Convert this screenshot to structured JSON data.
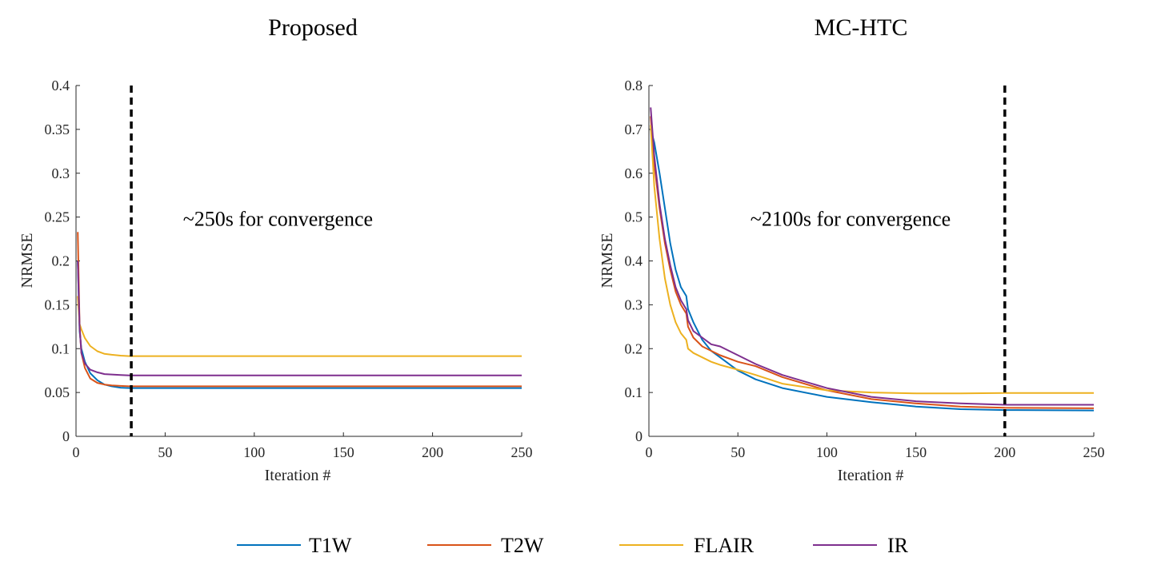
{
  "colors": {
    "T1W": "#0072BD",
    "T2W": "#D95319",
    "FLAIR": "#EDB120",
    "IR": "#7E2F8E",
    "axis": "#262626",
    "marker": "#000000"
  },
  "legend": [
    "T1W",
    "T2W",
    "FLAIR",
    "IR"
  ],
  "chart_data": [
    {
      "type": "line",
      "title": "Proposed",
      "xlabel": "Iteration #",
      "ylabel": "NRMSE",
      "xlim": [
        0,
        250
      ],
      "ylim": [
        0,
        0.4
      ],
      "xticks": [
        0,
        50,
        100,
        150,
        200,
        250
      ],
      "yticks": [
        0,
        0.05,
        0.1,
        0.15,
        0.2,
        0.25,
        0.3,
        0.35,
        0.4
      ],
      "xtick_labels": [
        "0",
        "50",
        "100",
        "150",
        "200",
        "250"
      ],
      "ytick_labels": [
        "0",
        "0.05",
        "0.1",
        "0.15",
        "0.2",
        "0.25",
        "0.3",
        "0.35",
        "0.4"
      ],
      "vline_x": 31,
      "annotation": "~250s for convergence",
      "annotation_at": [
        60,
        0.24
      ],
      "series": [
        {
          "name": "T1W",
          "x": [
            1,
            2,
            3,
            5,
            8,
            12,
            16,
            20,
            25,
            30,
            40,
            60,
            100,
            250
          ],
          "values": [
            0.2,
            0.12,
            0.1,
            0.085,
            0.072,
            0.064,
            0.059,
            0.057,
            0.0555,
            0.055,
            0.055,
            0.055,
            0.055,
            0.055
          ]
        },
        {
          "name": "T2W",
          "x": [
            1,
            2,
            3,
            5,
            8,
            12,
            16,
            20,
            25,
            30,
            40,
            60,
            100,
            250
          ],
          "values": [
            0.233,
            0.125,
            0.095,
            0.078,
            0.066,
            0.061,
            0.059,
            0.058,
            0.0575,
            0.057,
            0.057,
            0.057,
            0.057,
            0.057
          ]
        },
        {
          "name": "FLAIR",
          "x": [
            1,
            2,
            3,
            5,
            8,
            12,
            16,
            20,
            25,
            30,
            40,
            60,
            100,
            250
          ],
          "values": [
            0.16,
            0.128,
            0.122,
            0.112,
            0.103,
            0.097,
            0.094,
            0.093,
            0.092,
            0.0915,
            0.0915,
            0.0915,
            0.0915,
            0.0915
          ]
        },
        {
          "name": "IR",
          "x": [
            1,
            2,
            3,
            5,
            8,
            12,
            16,
            20,
            25,
            30,
            40,
            60,
            100,
            250
          ],
          "values": [
            0.2,
            0.125,
            0.095,
            0.083,
            0.076,
            0.073,
            0.071,
            0.0705,
            0.07,
            0.0695,
            0.0695,
            0.0695,
            0.0695,
            0.0695
          ]
        }
      ]
    },
    {
      "type": "line",
      "title": "MC-HTC",
      "xlabel": "Iteration #",
      "ylabel": "NRMSE",
      "xlim": [
        0,
        250
      ],
      "ylim": [
        0,
        0.8
      ],
      "xticks": [
        0,
        50,
        100,
        150,
        200,
        250
      ],
      "yticks": [
        0,
        0.1,
        0.2,
        0.3,
        0.4,
        0.5,
        0.6,
        0.7,
        0.8
      ],
      "xtick_labels": [
        "0",
        "50",
        "100",
        "150",
        "200",
        "250"
      ],
      "ytick_labels": [
        "0",
        "0.1",
        "0.2",
        "0.3",
        "0.4",
        "0.5",
        "0.6",
        "0.7",
        "0.8"
      ],
      "vline_x": 200,
      "annotation": "~2100s for convergence",
      "annotation_at": [
        57,
        0.48
      ],
      "series": [
        {
          "name": "T1W",
          "x": [
            1,
            3,
            6,
            9,
            12,
            15,
            18,
            21,
            22,
            25,
            30,
            35,
            40,
            50,
            60,
            75,
            100,
            125,
            150,
            175,
            200,
            250
          ],
          "values": [
            0.7,
            0.67,
            0.6,
            0.52,
            0.44,
            0.38,
            0.34,
            0.32,
            0.29,
            0.26,
            0.22,
            0.195,
            0.18,
            0.15,
            0.13,
            0.11,
            0.09,
            0.078,
            0.068,
            0.062,
            0.06,
            0.059
          ]
        },
        {
          "name": "T2W",
          "x": [
            1,
            3,
            6,
            9,
            12,
            15,
            18,
            21,
            22,
            25,
            30,
            35,
            40,
            50,
            60,
            75,
            100,
            125,
            150,
            175,
            200,
            250
          ],
          "values": [
            0.73,
            0.62,
            0.52,
            0.44,
            0.38,
            0.33,
            0.3,
            0.28,
            0.25,
            0.225,
            0.205,
            0.195,
            0.185,
            0.17,
            0.16,
            0.135,
            0.105,
            0.085,
            0.075,
            0.068,
            0.065,
            0.064
          ]
        },
        {
          "name": "FLAIR",
          "x": [
            1,
            3,
            6,
            9,
            12,
            15,
            18,
            21,
            22,
            25,
            30,
            35,
            40,
            50,
            60,
            75,
            100,
            125,
            150,
            175,
            200,
            250
          ],
          "values": [
            0.71,
            0.57,
            0.45,
            0.36,
            0.3,
            0.26,
            0.235,
            0.22,
            0.2,
            0.19,
            0.18,
            0.17,
            0.163,
            0.152,
            0.14,
            0.12,
            0.105,
            0.1,
            0.098,
            0.098,
            0.099,
            0.099
          ]
        },
        {
          "name": "IR",
          "x": [
            1,
            3,
            6,
            9,
            12,
            15,
            18,
            21,
            22,
            25,
            30,
            35,
            40,
            50,
            60,
            75,
            100,
            125,
            150,
            175,
            200,
            250
          ],
          "values": [
            0.75,
            0.64,
            0.53,
            0.45,
            0.39,
            0.34,
            0.31,
            0.29,
            0.265,
            0.24,
            0.225,
            0.21,
            0.205,
            0.185,
            0.165,
            0.14,
            0.11,
            0.09,
            0.08,
            0.075,
            0.072,
            0.072
          ]
        }
      ]
    }
  ]
}
